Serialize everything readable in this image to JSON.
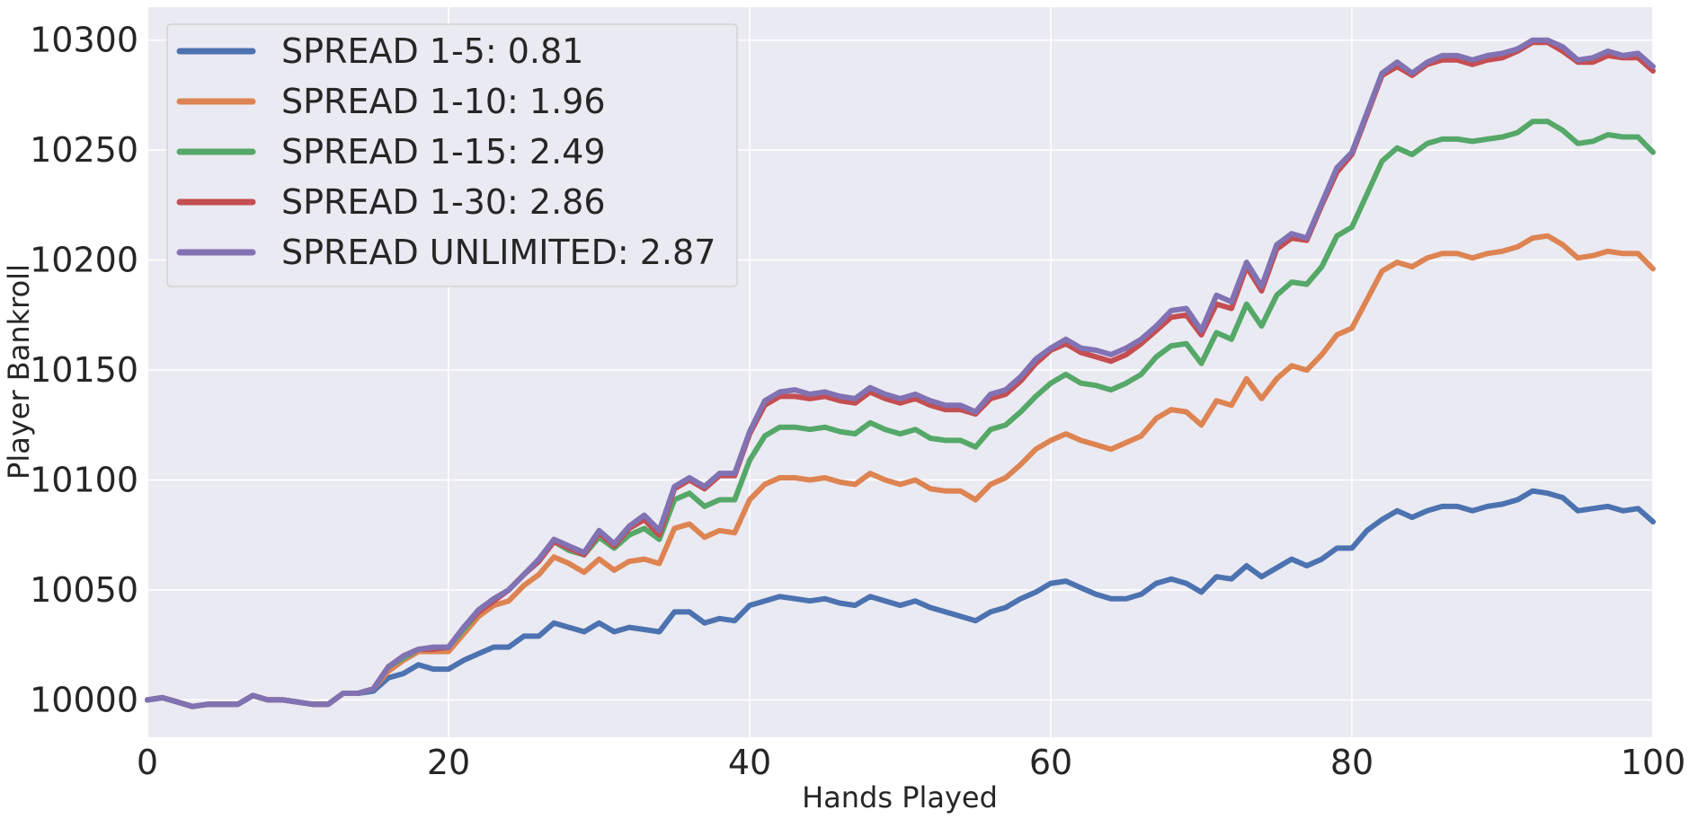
{
  "chart_data": {
    "type": "line",
    "title": "",
    "xlabel": "Hands Played",
    "ylabel": "Player Bankroll",
    "xlim": [
      0,
      100
    ],
    "ylim": [
      9983,
      10315
    ],
    "xticks": [
      0,
      20,
      40,
      60,
      80,
      100
    ],
    "yticks": [
      10000,
      10050,
      10100,
      10150,
      10200,
      10250,
      10300
    ],
    "grid": true,
    "legend_position": "top-left",
    "background_color": "#eaeaf2",
    "series": [
      {
        "name": "SPREAD 1-5: 0.81",
        "color": "#4c72b0",
        "values": [
          10000,
          10001,
          9999,
          9997,
          9998,
          9998,
          9998,
          10002,
          10000,
          10000,
          9999,
          9998,
          9998,
          10003,
          10003,
          10004,
          10010,
          10012,
          10016,
          10014,
          10014,
          10018,
          10021,
          10024,
          10024,
          10029,
          10029,
          10035,
          10033,
          10031,
          10035,
          10031,
          10033,
          10032,
          10031,
          10040,
          10040,
          10035,
          10037,
          10036,
          10043,
          10045,
          10047,
          10046,
          10045,
          10046,
          10044,
          10043,
          10047,
          10045,
          10043,
          10045,
          10042,
          10040,
          10038,
          10036,
          10040,
          10042,
          10046,
          10049,
          10053,
          10054,
          10051,
          10048,
          10046,
          10046,
          10048,
          10053,
          10055,
          10053,
          10049,
          10056,
          10055,
          10061,
          10056,
          10060,
          10064,
          10061,
          10064,
          10069,
          10069,
          10077,
          10082,
          10086,
          10083,
          10086,
          10088,
          10088,
          10086,
          10088,
          10089,
          10091,
          10095,
          10094,
          10092,
          10086,
          10087,
          10088,
          10086,
          10087,
          10081
        ]
      },
      {
        "name": "SPREAD 1-10: 1.96",
        "color": "#dd8452",
        "values": [
          10000,
          10001,
          9999,
          9997,
          9998,
          9998,
          9998,
          10002,
          10000,
          10000,
          9999,
          9998,
          9998,
          10003,
          10003,
          10005,
          10013,
          10018,
          10022,
          10022,
          10022,
          10030,
          10038,
          10043,
          10045,
          10052,
          10057,
          10065,
          10062,
          10058,
          10064,
          10059,
          10063,
          10064,
          10062,
          10078,
          10080,
          10074,
          10077,
          10076,
          10091,
          10098,
          10101,
          10101,
          10100,
          10101,
          10099,
          10098,
          10103,
          10100,
          10098,
          10100,
          10096,
          10095,
          10095,
          10091,
          10098,
          10101,
          10107,
          10114,
          10118,
          10121,
          10118,
          10116,
          10114,
          10117,
          10120,
          10128,
          10132,
          10131,
          10125,
          10136,
          10134,
          10146,
          10137,
          10146,
          10152,
          10150,
          10157,
          10166,
          10169,
          10182,
          10195,
          10199,
          10197,
          10201,
          10203,
          10203,
          10201,
          10203,
          10204,
          10206,
          10210,
          10211,
          10207,
          10201,
          10202,
          10204,
          10203,
          10203,
          10196
        ]
      },
      {
        "name": "SPREAD 1-15: 2.49",
        "color": "#55a868",
        "values": [
          10000,
          10001,
          9999,
          9997,
          9998,
          9998,
          9998,
          10002,
          10000,
          10000,
          9999,
          9998,
          9998,
          10003,
          10003,
          10005,
          10015,
          10019,
          10023,
          10023,
          10024,
          10032,
          10040,
          10046,
          10050,
          10057,
          10063,
          10072,
          10068,
          10066,
          10074,
          10069,
          10075,
          10078,
          10073,
          10091,
          10094,
          10088,
          10091,
          10091,
          10109,
          10120,
          10124,
          10124,
          10123,
          10124,
          10122,
          10121,
          10126,
          10123,
          10121,
          10123,
          10119,
          10118,
          10118,
          10115,
          10123,
          10125,
          10131,
          10138,
          10144,
          10148,
          10144,
          10143,
          10141,
          10144,
          10148,
          10156,
          10161,
          10162,
          10153,
          10167,
          10164,
          10180,
          10170,
          10184,
          10190,
          10189,
          10197,
          10211,
          10215,
          10230,
          10245,
          10251,
          10248,
          10253,
          10255,
          10255,
          10254,
          10255,
          10256,
          10258,
          10263,
          10263,
          10259,
          10253,
          10254,
          10257,
          10256,
          10256,
          10249
        ]
      },
      {
        "name": "SPREAD 1-30: 2.86",
        "color": "#c44e52",
        "values": [
          10000,
          10001,
          9999,
          9997,
          9998,
          9998,
          9998,
          10002,
          10000,
          10000,
          9999,
          9998,
          9998,
          10003,
          10003,
          10005,
          10015,
          10020,
          10023,
          10023,
          10024,
          10033,
          10040,
          10045,
          10050,
          10057,
          10063,
          10072,
          10069,
          10066,
          10076,
          10070,
          10078,
          10082,
          10075,
          10096,
          10100,
          10096,
          10102,
          10102,
          10121,
          10134,
          10138,
          10138,
          10137,
          10138,
          10136,
          10135,
          10140,
          10137,
          10135,
          10137,
          10134,
          10132,
          10132,
          10130,
          10137,
          10139,
          10145,
          10153,
          10159,
          10162,
          10158,
          10156,
          10154,
          10157,
          10162,
          10168,
          10174,
          10175,
          10166,
          10180,
          10178,
          10197,
          10186,
          10205,
          10210,
          10209,
          10225,
          10240,
          10248,
          10266,
          10284,
          10288,
          10284,
          10289,
          10291,
          10291,
          10289,
          10291,
          10292,
          10295,
          10299,
          10299,
          10295,
          10290,
          10290,
          10293,
          10292,
          10292,
          10286
        ]
      },
      {
        "name": "SPREAD UNLIMITED: 2.87",
        "color": "#8172b3",
        "values": [
          10000,
          10001,
          9999,
          9997,
          9998,
          9998,
          9998,
          10002,
          10000,
          10000,
          9999,
          9998,
          9998,
          10003,
          10003,
          10005,
          10015,
          10020,
          10023,
          10024,
          10024,
          10033,
          10041,
          10046,
          10050,
          10057,
          10064,
          10073,
          10070,
          10067,
          10077,
          10071,
          10079,
          10084,
          10077,
          10097,
          10101,
          10097,
          10103,
          10103,
          10122,
          10136,
          10140,
          10141,
          10139,
          10140,
          10138,
          10137,
          10142,
          10139,
          10137,
          10139,
          10136,
          10134,
          10134,
          10131,
          10139,
          10141,
          10147,
          10155,
          10160,
          10164,
          10160,
          10159,
          10157,
          10160,
          10164,
          10170,
          10177,
          10178,
          10168,
          10184,
          10181,
          10199,
          10188,
          10207,
          10212,
          10210,
          10226,
          10242,
          10249,
          10267,
          10285,
          10290,
          10285,
          10290,
          10293,
          10293,
          10291,
          10293,
          10294,
          10296,
          10300,
          10300,
          10297,
          10291,
          10292,
          10295,
          10293,
          10294,
          10288
        ]
      }
    ]
  }
}
